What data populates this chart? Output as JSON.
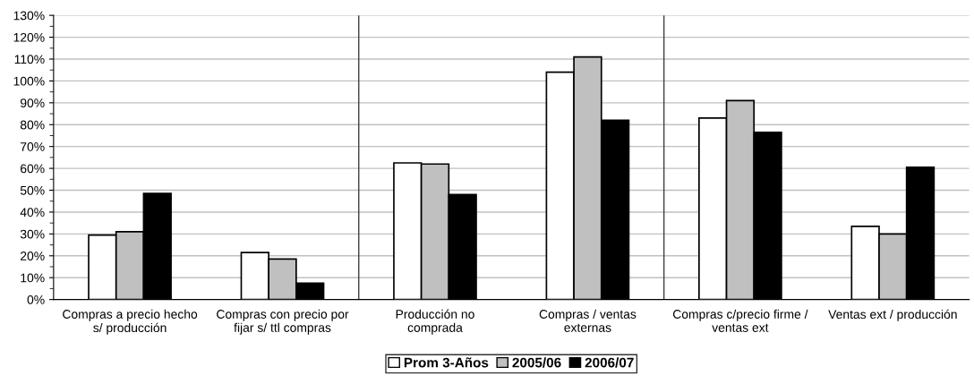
{
  "chart_data": {
    "type": "bar",
    "categories": [
      "Compras a precio hecho\ns/ producción",
      "Compras con precio por\nfijar s/ ttl compras",
      "Producción no\ncomprada",
      "Compras / ventas\nexternas",
      "Compras c/precio firme /\nventas ext",
      "Ventas ext / producción"
    ],
    "series": [
      {
        "name": "Prom 3-Años",
        "color": "#ffffff",
        "values": [
          29.5,
          21.5,
          62.5,
          104,
          83,
          33.5
        ]
      },
      {
        "name": "2005/06",
        "color": "#c0c0c0",
        "values": [
          31,
          18.5,
          62,
          111,
          91,
          30
        ]
      },
      {
        "name": "2006/07",
        "color": "#000000",
        "values": [
          48.5,
          7.5,
          48,
          82,
          76.5,
          60.5
        ]
      }
    ],
    "ylim": [
      0,
      130
    ],
    "yticks": [
      {
        "value": 0,
        "label": "0%"
      },
      {
        "value": 10,
        "label": "10%"
      },
      {
        "value": 20,
        "label": "20%"
      },
      {
        "value": 30,
        "label": "30%"
      },
      {
        "value": 40,
        "label": "40%"
      },
      {
        "value": 50,
        "label": "50%"
      },
      {
        "value": 60,
        "label": "60%"
      },
      {
        "value": 70,
        "label": "70%"
      },
      {
        "value": 80,
        "label": "80%"
      },
      {
        "value": 90,
        "label": "90%"
      },
      {
        "value": 100,
        "label": "100%"
      },
      {
        "value": 110,
        "label": "110%"
      },
      {
        "value": 120,
        "label": "120%"
      },
      {
        "value": 130,
        "label": "130%"
      }
    ],
    "grid": "y",
    "legend": "bottom"
  }
}
